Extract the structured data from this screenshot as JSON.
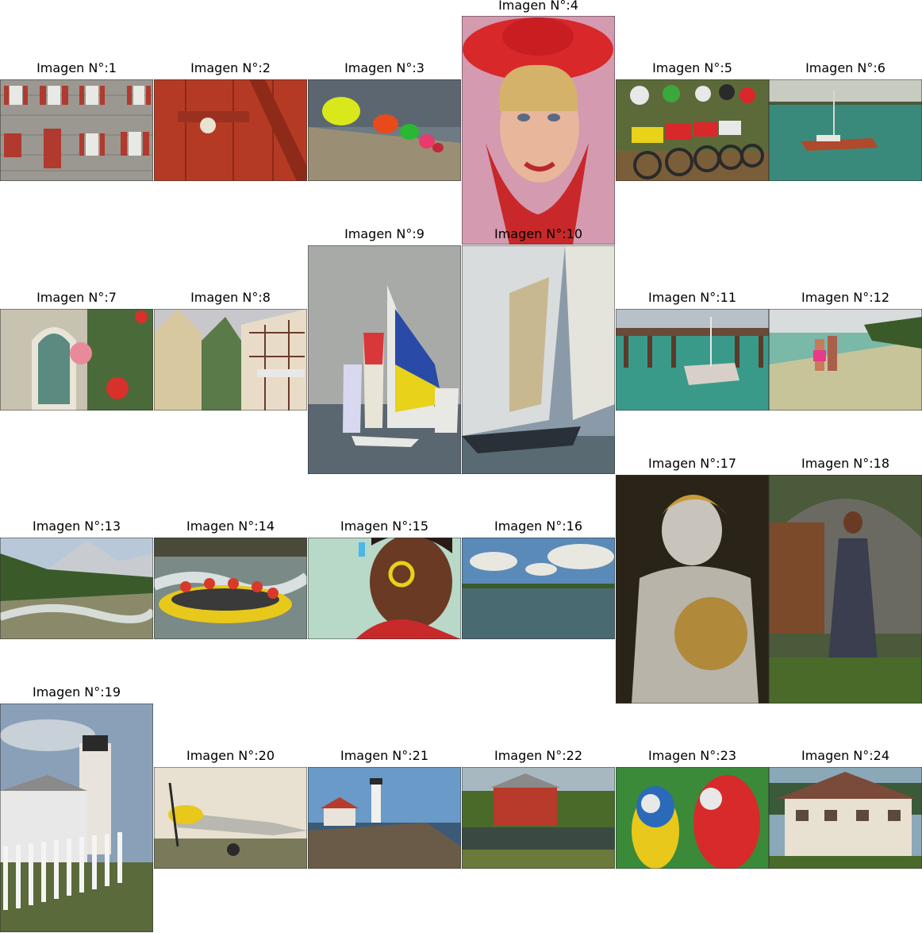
{
  "images": [
    {
      "caption": "Imagen N°:1",
      "subject": "brick-house-facade"
    },
    {
      "caption": "Imagen N°:2",
      "subject": "red-door"
    },
    {
      "caption": "Imagen N°:3",
      "subject": "colored-hats"
    },
    {
      "caption": "Imagen N°:4",
      "subject": "woman-red-hat"
    },
    {
      "caption": "Imagen N°:5",
      "subject": "motocross-riders"
    },
    {
      "caption": "Imagen N°:6",
      "subject": "boat-on-sea"
    },
    {
      "caption": "Imagen N°:7",
      "subject": "window-hibiscus"
    },
    {
      "caption": "Imagen N°:8",
      "subject": "half-timbered-houses"
    },
    {
      "caption": "Imagen N°:9",
      "subject": "sailboats-race"
    },
    {
      "caption": "Imagen N°:10",
      "subject": "sailboat-closeup"
    },
    {
      "caption": "Imagen N°:11",
      "subject": "pier-boat"
    },
    {
      "caption": "Imagen N°:12",
      "subject": "couple-on-beach"
    },
    {
      "caption": "Imagen N°:13",
      "subject": "mountain-stream"
    },
    {
      "caption": "Imagen N°:14",
      "subject": "river-rafting"
    },
    {
      "caption": "Imagen N°:15",
      "subject": "child-face-paint"
    },
    {
      "caption": "Imagen N°:16",
      "subject": "lake-clouds"
    },
    {
      "caption": "Imagen N°:17",
      "subject": "statue-golden-globe"
    },
    {
      "caption": "Imagen N°:18",
      "subject": "woman-dark-dress"
    },
    {
      "caption": "Imagen N°:19",
      "subject": "lighthouse-fence"
    },
    {
      "caption": "Imagen N°:20",
      "subject": "propeller-plane"
    },
    {
      "caption": "Imagen N°:21",
      "subject": "coastal-lighthouse"
    },
    {
      "caption": "Imagen N°:22",
      "subject": "red-barn-pond"
    },
    {
      "caption": "Imagen N°:23",
      "subject": "macaws"
    },
    {
      "caption": "Imagen N°:24",
      "subject": "painted-house"
    }
  ]
}
